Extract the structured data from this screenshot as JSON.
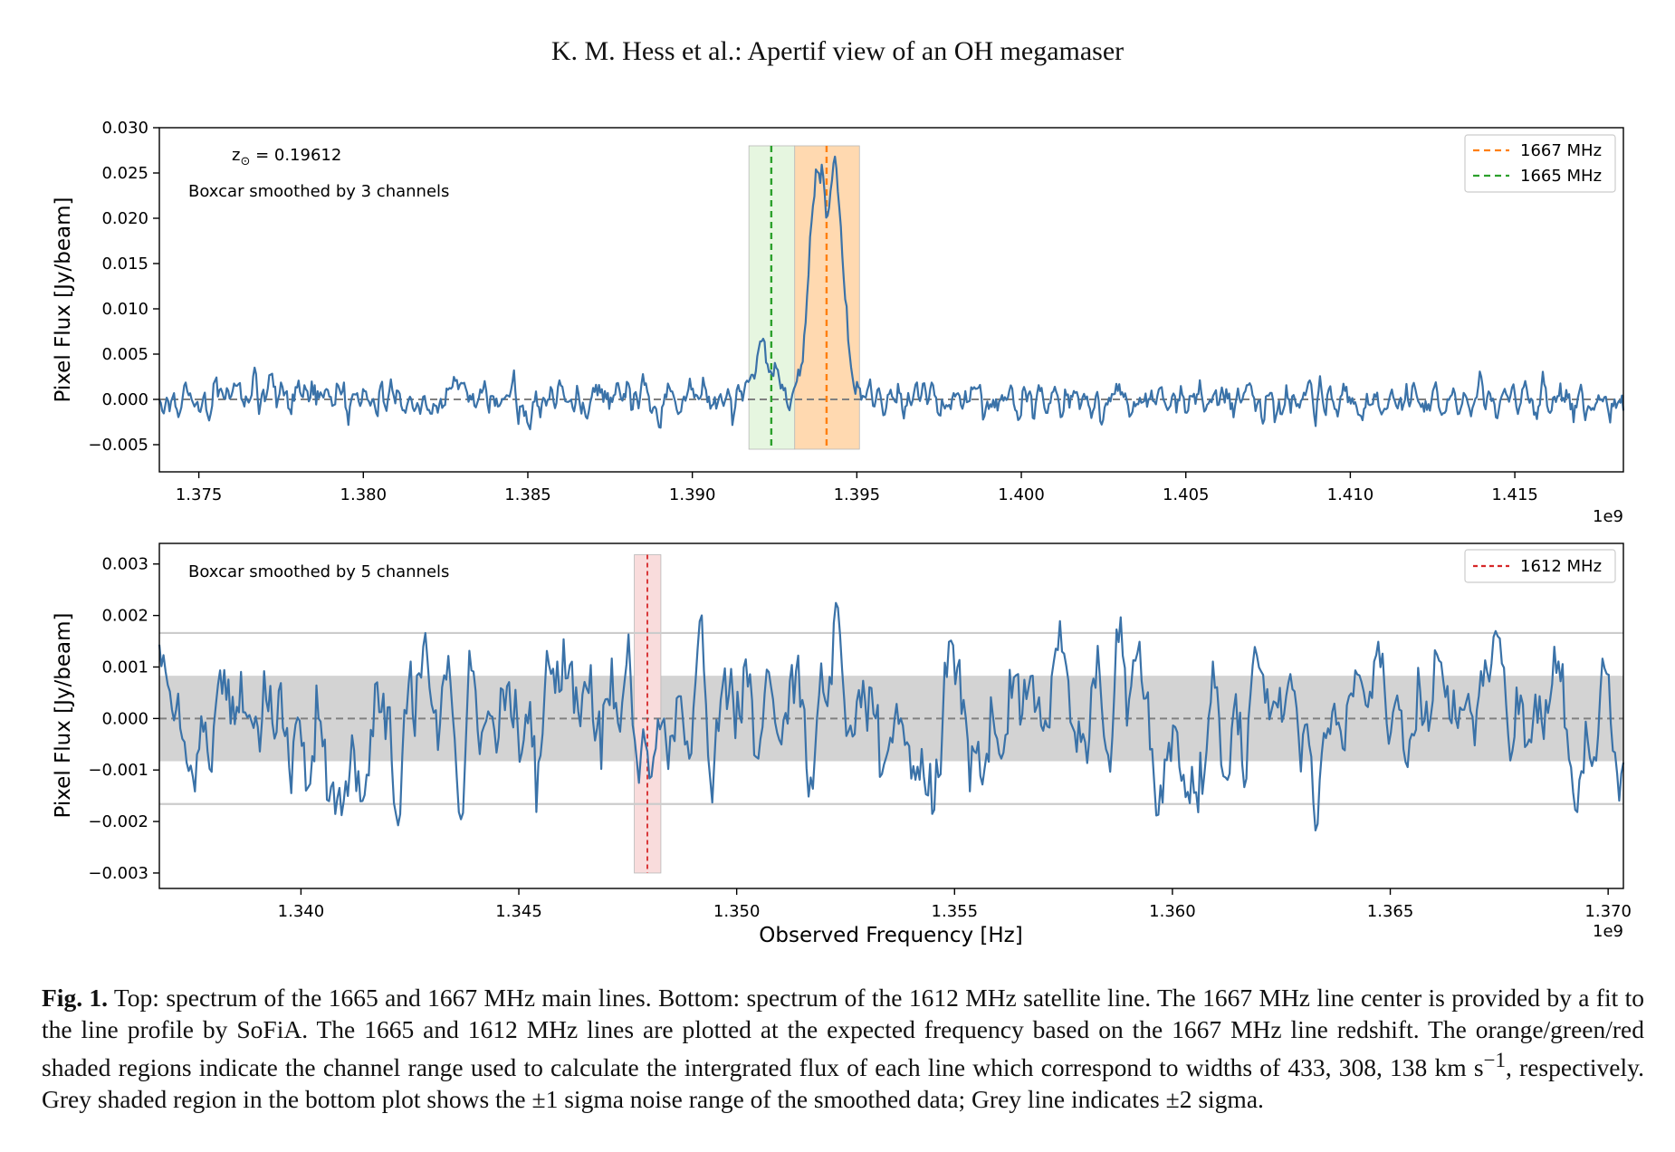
{
  "header": {
    "running_title": "K. M. Hess et al.: Apertif view of an OH megamaser"
  },
  "figure": {
    "top_panel": {
      "ylabel": "Pixel Flux [Jy/beam]",
      "ytick_labels": [
        "0.030",
        "0.025",
        "0.020",
        "0.015",
        "0.010",
        "0.005",
        "0.000",
        "−0.005"
      ],
      "xtick_labels": [
        "1.375",
        "1.380",
        "1.385",
        "1.390",
        "1.395",
        "1.400",
        "1.405",
        "1.410",
        "1.415"
      ],
      "x_exponent": "1e9",
      "annotation_z_prefix": "z",
      "annotation_z_sub": "⊙",
      "annotation_z_value": " =  0.19612",
      "annotation_smoothing": "Boxcar smoothed by 3 channels",
      "legend": [
        {
          "label": "1667 MHz",
          "color": "#ff7f0e"
        },
        {
          "label": "1665 MHz",
          "color": "#2ca02c"
        }
      ]
    },
    "bottom_panel": {
      "ylabel": "Pixel Flux [Jy/beam]",
      "ytick_labels": [
        "0.003",
        "0.002",
        "0.001",
        "0.000",
        "−0.001",
        "−0.002",
        "−0.003"
      ],
      "xtick_labels": [
        "1.340",
        "1.345",
        "1.350",
        "1.355",
        "1.360",
        "1.365",
        "1.370"
      ],
      "x_exponent": "1e9",
      "xlabel": "Observed Frequency [Hz]",
      "annotation_smoothing": "Boxcar smoothed by 5 channels",
      "legend": [
        {
          "label": "1612 MHz",
          "color": "#d62728"
        }
      ]
    }
  },
  "chart_data": [
    {
      "type": "line",
      "ylabel": "Pixel Flux [Jy/beam]",
      "xlim": [
        1373800000.0,
        1418300000.0
      ],
      "ylim": [
        -0.008,
        0.03
      ],
      "yticks": [
        0.03,
        0.025,
        0.02,
        0.015,
        0.01,
        0.005,
        0.0,
        -0.005
      ],
      "xticks": [
        1375000000.0,
        1380000000.0,
        1385000000.0,
        1390000000.0,
        1395000000.0,
        1400000000.0,
        1405000000.0,
        1410000000.0,
        1415000000.0
      ],
      "line_color": "#3a72a8",
      "noise_sigma": 0.0011,
      "seed": 17,
      "n_points": 1000,
      "zero_line": {
        "y": 0.0,
        "style": "dashed",
        "color": "#808080"
      },
      "vlines": [
        {
          "x": 1394080000.0,
          "color": "#ff7f0e",
          "style": "dashed",
          "legend": "1667 MHz"
        },
        {
          "x": 1392400000.0,
          "color": "#2ca02c",
          "style": "dashed",
          "legend": "1665 MHz"
        }
      ],
      "spans": [
        {
          "x0": 1393110000.0,
          "x1": 1395080000.0,
          "color": "#ffd9b0",
          "label": "1667 MHz channel range"
        },
        {
          "x0": 1391720000.0,
          "x1": 1393110000.0,
          "color": "#e6f6e0",
          "label": "1665 MHz channel range"
        }
      ],
      "features": [
        {
          "x": 1392240000.0,
          "amp": 0.0054,
          "width": 300000.0
        },
        {
          "x": 1393780000.0,
          "amp": 0.0238,
          "width": 220000.0
        },
        {
          "x": 1394380000.0,
          "amp": 0.0232,
          "width": 220000.0
        },
        {
          "x": 1394120000.0,
          "amp": 0.0026,
          "width": 520000.0
        }
      ]
    },
    {
      "type": "line",
      "ylabel": "Pixel Flux [Jy/beam]",
      "xlabel": "Observed Frequency [Hz]",
      "xlim": [
        1336750000.0,
        1370350000.0
      ],
      "ylim": [
        -0.0033,
        0.0034
      ],
      "yticks": [
        0.003,
        0.002,
        0.001,
        0.0,
        -0.001,
        -0.002,
        -0.003
      ],
      "xticks": [
        1340000000.0,
        1345000000.0,
        1350000000.0,
        1355000000.0,
        1360000000.0,
        1365000000.0,
        1370000000.0
      ],
      "line_color": "#3a72a8",
      "noise_sigma": 0.00083,
      "seed": 41,
      "n_points": 700,
      "zero_line": {
        "y": 0.0,
        "style": "dashed",
        "color": "#808080"
      },
      "sigma1_band": {
        "y0": -0.00083,
        "y1": 0.00083,
        "color": "#d3d3d3"
      },
      "sigma2_lines": {
        "y": [
          0.00166,
          -0.00166
        ],
        "color": "#cccccc"
      },
      "vlines": [
        {
          "x": 1347950000.0,
          "color": "#d62728",
          "style": "dashed",
          "legend": "1612 MHz"
        }
      ],
      "spans": [
        {
          "x0": 1347650000.0,
          "x1": 1348260000.0,
          "color": "#f9dcdc",
          "label": "1612 MHz channel range"
        }
      ]
    }
  ],
  "caption": {
    "label": "Fig. 1.",
    "text_part1": " Top: spectrum of the 1665 and 1667 MHz main lines. Bottom: spectrum of the 1612 MHz satellite line. The 1667 MHz line center is provided by a fit to the line profile by SoFiA. The 1665 and 1612 MHz lines are plotted at the expected frequency based on the 1667 MHz line redshift. The orange/green/red shaded regions indicate the channel range used to calculate the intergrated flux of each line which correspond to widths of 433, 308, 138 km s",
    "superscript": "−1",
    "text_part2": ", respectively. Grey shaded region in the bottom plot shows the ±1 sigma noise range of the smoothed data; Grey line indicates ±2 sigma."
  }
}
